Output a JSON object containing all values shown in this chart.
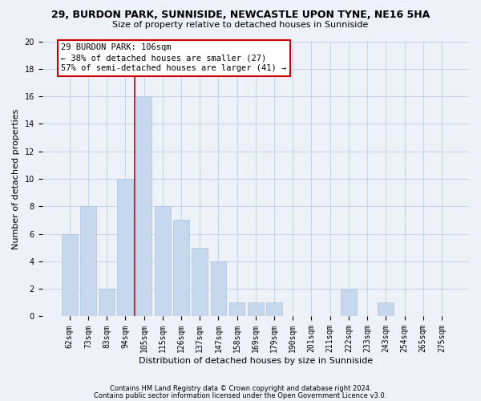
{
  "title": "29, BURDON PARK, SUNNISIDE, NEWCASTLE UPON TYNE, NE16 5HA",
  "subtitle": "Size of property relative to detached houses in Sunniside",
  "xlabel": "Distribution of detached houses by size in Sunniside",
  "ylabel": "Number of detached properties",
  "bar_labels": [
    "62sqm",
    "73sqm",
    "83sqm",
    "94sqm",
    "105sqm",
    "115sqm",
    "126sqm",
    "137sqm",
    "147sqm",
    "158sqm",
    "169sqm",
    "179sqm",
    "190sqm",
    "201sqm",
    "211sqm",
    "222sqm",
    "233sqm",
    "243sqm",
    "254sqm",
    "265sqm",
    "275sqm"
  ],
  "bar_values": [
    6,
    8,
    2,
    10,
    16,
    8,
    7,
    5,
    4,
    1,
    1,
    1,
    0,
    0,
    0,
    2,
    0,
    1,
    0,
    0,
    0
  ],
  "bar_color": "#c5d8ed",
  "bar_edge_color": "#a8c4e0",
  "vline_x_index": 4,
  "vline_color": "#cc0000",
  "annotation_title": "29 BURDON PARK: 106sqm",
  "annotation_line1": "← 38% of detached houses are smaller (27)",
  "annotation_line2": "57% of semi-detached houses are larger (41) →",
  "annotation_box_facecolor": "#ffffff",
  "annotation_box_edgecolor": "#cc0000",
  "ylim": [
    0,
    20
  ],
  "yticks": [
    0,
    2,
    4,
    6,
    8,
    10,
    12,
    14,
    16,
    18,
    20
  ],
  "footnote1": "Contains HM Land Registry data © Crown copyright and database right 2024.",
  "footnote2": "Contains public sector information licensed under the Open Government Licence v3.0.",
  "grid_color": "#c8d4e8",
  "background_color": "#eef2f8",
  "title_fontsize": 9,
  "subtitle_fontsize": 8,
  "tick_fontsize": 7,
  "label_fontsize": 8,
  "footnote_fontsize": 6
}
